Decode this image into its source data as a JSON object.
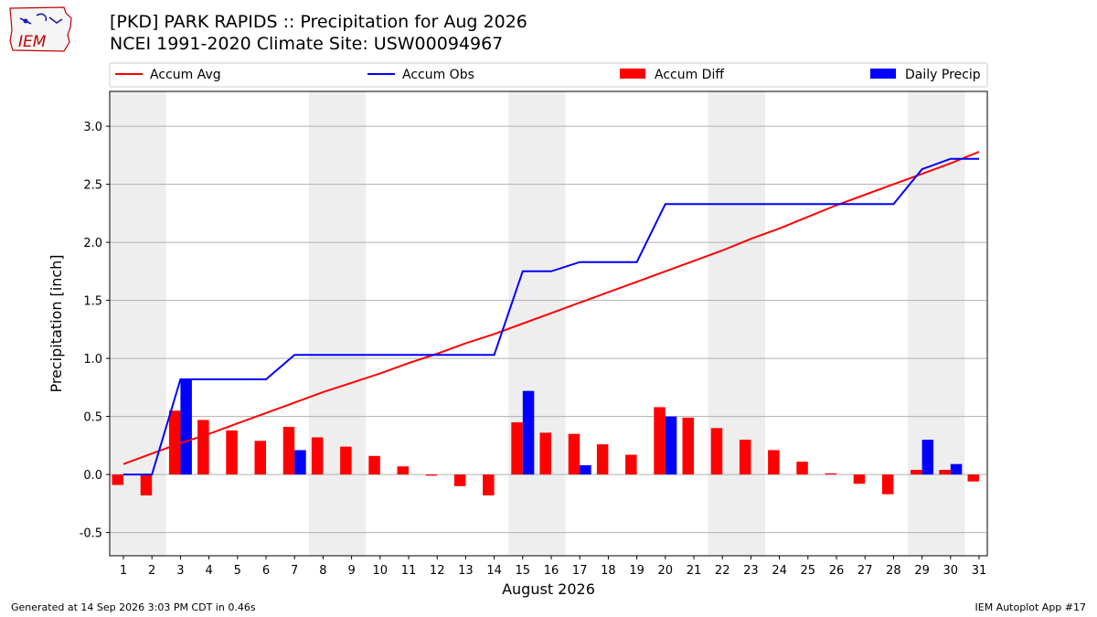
{
  "header": {
    "title_line1": "[PKD] PARK RAPIDS :: Precipitation for Aug 2026",
    "title_line2": "NCEI 1991-2020 Climate Site: USW00094967",
    "logo_text": "IEM"
  },
  "footer": {
    "generated": "Generated at 14 Sep 2026 3:03 PM CDT in 0.46s",
    "app": "IEM Autoplot App #17"
  },
  "colors": {
    "avg": "#ff0000",
    "obs": "#0000ff",
    "diff": "#ff0000",
    "daily": "#0000ff",
    "weekend_shade": "#eeeeee",
    "grid": "#b0b0b0"
  },
  "chart_data": {
    "type": "bar",
    "xlabel": "August 2026",
    "ylabel": "Precipitation [inch]",
    "ylim": [
      -0.7,
      3.3
    ],
    "yticks": [
      "-0.5",
      "0.0",
      "0.5",
      "1.0",
      "1.5",
      "2.0",
      "2.5",
      "3.0"
    ],
    "yticks_values": [
      -0.5,
      0.0,
      0.5,
      1.0,
      1.5,
      2.0,
      2.5,
      3.0
    ],
    "categories": [
      "1",
      "2",
      "3",
      "4",
      "5",
      "6",
      "7",
      "8",
      "9",
      "10",
      "11",
      "12",
      "13",
      "14",
      "15",
      "16",
      "17",
      "18",
      "19",
      "20",
      "21",
      "22",
      "23",
      "24",
      "25",
      "26",
      "27",
      "28",
      "29",
      "30",
      "31"
    ],
    "grid": "horizontal",
    "legend_position": "top",
    "shaded_days": [
      [
        1,
        2
      ],
      [
        8,
        9
      ],
      [
        15,
        16
      ],
      [
        22,
        23
      ],
      [
        29,
        30
      ]
    ],
    "series": [
      {
        "name": "Accum Avg",
        "kind": "line",
        "values": [
          0.09,
          0.18,
          0.27,
          0.35,
          0.44,
          0.53,
          0.62,
          0.71,
          0.79,
          0.87,
          0.96,
          1.04,
          1.13,
          1.21,
          1.3,
          1.39,
          1.48,
          1.57,
          1.66,
          1.75,
          1.84,
          1.93,
          2.03,
          2.12,
          2.22,
          2.32,
          2.41,
          2.5,
          2.59,
          2.68,
          2.78
        ]
      },
      {
        "name": "Accum Obs",
        "kind": "line",
        "values": [
          0.0,
          0.0,
          0.82,
          0.82,
          0.82,
          0.82,
          1.03,
          1.03,
          1.03,
          1.03,
          1.03,
          1.03,
          1.03,
          1.03,
          1.75,
          1.75,
          1.83,
          1.83,
          1.83,
          2.33,
          2.33,
          2.33,
          2.33,
          2.33,
          2.33,
          2.33,
          2.33,
          2.33,
          2.63,
          2.72,
          2.72
        ]
      },
      {
        "name": "Accum Diff",
        "kind": "bar",
        "values": [
          -0.09,
          -0.18,
          0.55,
          0.47,
          0.38,
          0.29,
          0.41,
          0.32,
          0.24,
          0.16,
          0.07,
          -0.01,
          -0.1,
          -0.18,
          0.45,
          0.36,
          0.35,
          0.26,
          0.17,
          0.58,
          0.49,
          0.4,
          0.3,
          0.21,
          0.11,
          0.01,
          -0.08,
          -0.17,
          0.04,
          0.04,
          -0.06
        ]
      },
      {
        "name": "Daily Precip",
        "kind": "bar",
        "values": [
          0.0,
          0.0,
          0.82,
          0.0,
          0.0,
          0.0,
          0.21,
          0.0,
          0.0,
          0.0,
          0.0,
          0.0,
          0.0,
          0.0,
          0.72,
          0.0,
          0.08,
          0.0,
          0.0,
          0.5,
          0.0,
          0.0,
          0.0,
          0.0,
          0.0,
          0.0,
          0.0,
          0.0,
          0.3,
          0.09,
          0.0
        ]
      }
    ]
  }
}
